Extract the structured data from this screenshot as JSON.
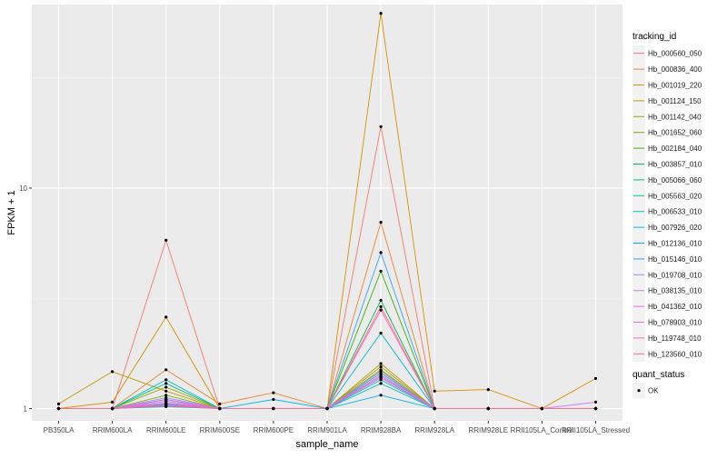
{
  "chart_data": {
    "type": "line",
    "xlabel": "sample_name",
    "ylabel": "FPKM + 1",
    "y_scale": "log10",
    "ylim": [
      0.88,
      68
    ],
    "y_ticks": [
      1,
      10
    ],
    "y_tick_labels": [
      "1",
      "10"
    ],
    "categories": [
      "PB350LA",
      "RRIM600LA",
      "RRIM600LE",
      "RRIM600SE",
      "RRIM600PE",
      "RRIM901LA",
      "RRIM928BA",
      "RRIM928LA",
      "RRIM928LE",
      "RRII105LA_Control",
      "RRII105LA_Stressed"
    ],
    "grid": true,
    "legend_position": "right",
    "legend_title": "tracking_id",
    "shape_legend_title": "quant_status",
    "shape_legend_items": [
      "OK"
    ],
    "series": [
      {
        "name": "Hb_000560_050",
        "color": "#F8766D",
        "values": [
          1,
          1,
          5.8,
          1,
          1,
          1,
          19,
          1,
          1,
          1,
          1
        ]
      },
      {
        "name": "Hb_000836_400",
        "color": "#EA8331",
        "values": [
          1,
          1,
          1.5,
          1.05,
          1.18,
          1,
          7,
          1,
          1,
          1,
          1
        ]
      },
      {
        "name": "Hb_001019_220",
        "color": "#D89000",
        "values": [
          1,
          1.07,
          2.6,
          1,
          1,
          1,
          62,
          1.2,
          1.22,
          1,
          1.37
        ]
      },
      {
        "name": "Hb_001124_150",
        "color": "#C09B00",
        "values": [
          1.05,
          1.47,
          1.2,
          1,
          1,
          1,
          1.6,
          1,
          1,
          1,
          1
        ]
      },
      {
        "name": "Hb_001142_040",
        "color": "#A3A500",
        "values": [
          1,
          1,
          1.25,
          1,
          1,
          1,
          1.55,
          1,
          1,
          1,
          1
        ]
      },
      {
        "name": "Hb_001652_060",
        "color": "#7CAE00",
        "values": [
          1,
          1,
          1.15,
          1,
          1,
          1,
          1.5,
          1,
          1,
          1,
          1
        ]
      },
      {
        "name": "Hb_002184_040",
        "color": "#39B600",
        "values": [
          1,
          1,
          1.1,
          1,
          1,
          1,
          4.2,
          1,
          1,
          1,
          1
        ]
      },
      {
        "name": "Hb_003857_010",
        "color": "#00BB4E",
        "values": [
          1,
          1,
          1.05,
          1,
          1,
          1,
          3.1,
          1,
          1,
          1,
          1
        ]
      },
      {
        "name": "Hb_005066_060",
        "color": "#00BF7D",
        "values": [
          1,
          1,
          1.3,
          1,
          1,
          1,
          1.45,
          1,
          1,
          1,
          1
        ]
      },
      {
        "name": "Hb_005563_020",
        "color": "#00C1A3",
        "values": [
          1,
          1,
          1.08,
          1,
          1,
          1,
          1.35,
          1,
          1,
          1,
          1
        ]
      },
      {
        "name": "Hb_006533_010",
        "color": "#00BFC4",
        "values": [
          1,
          1,
          1.35,
          1,
          1,
          1,
          1.3,
          1,
          1,
          1,
          1
        ]
      },
      {
        "name": "Hb_007926_020",
        "color": "#00BAE0",
        "values": [
          1,
          1,
          1.02,
          1,
          1.1,
          1,
          2.2,
          1,
          1,
          1,
          1
        ]
      },
      {
        "name": "Hb_012136_010",
        "color": "#00B0F6",
        "values": [
          1,
          1,
          1.03,
          1,
          1,
          1,
          1.15,
          1,
          1,
          1,
          1
        ]
      },
      {
        "name": "Hb_015146_010",
        "color": "#35A2FF",
        "values": [
          1,
          1,
          1.05,
          1,
          1,
          1,
          5.1,
          1,
          1,
          1,
          1
        ]
      },
      {
        "name": "Hb_019708_010",
        "color": "#9590FF",
        "values": [
          1,
          1,
          1.12,
          1,
          1,
          1,
          1.4,
          1,
          1,
          1,
          1
        ]
      },
      {
        "name": "Hb_038135_010",
        "color": "#C77CFF",
        "values": [
          1,
          1,
          1.08,
          1,
          1,
          1,
          1.48,
          1,
          1,
          1,
          1.07
        ]
      },
      {
        "name": "Hb_041362_010",
        "color": "#E76BF3",
        "values": [
          1,
          1,
          1.1,
          1,
          1,
          1,
          1.42,
          1,
          1,
          1,
          1
        ]
      },
      {
        "name": "Hb_078903_010",
        "color": "#FA62DB",
        "values": [
          1,
          1,
          1.04,
          1,
          1,
          1,
          1.38,
          1,
          1,
          1,
          1
        ]
      },
      {
        "name": "Hb_119748_010",
        "color": "#FF62BC",
        "values": [
          1,
          1,
          1.06,
          1,
          1,
          1,
          2.8,
          1,
          1,
          1,
          1
        ]
      },
      {
        "name": "Hb_123560_010",
        "color": "#FF6C91",
        "values": [
          1,
          1,
          1.03,
          1,
          1,
          1,
          2.9,
          1,
          1,
          1,
          1
        ]
      }
    ]
  }
}
